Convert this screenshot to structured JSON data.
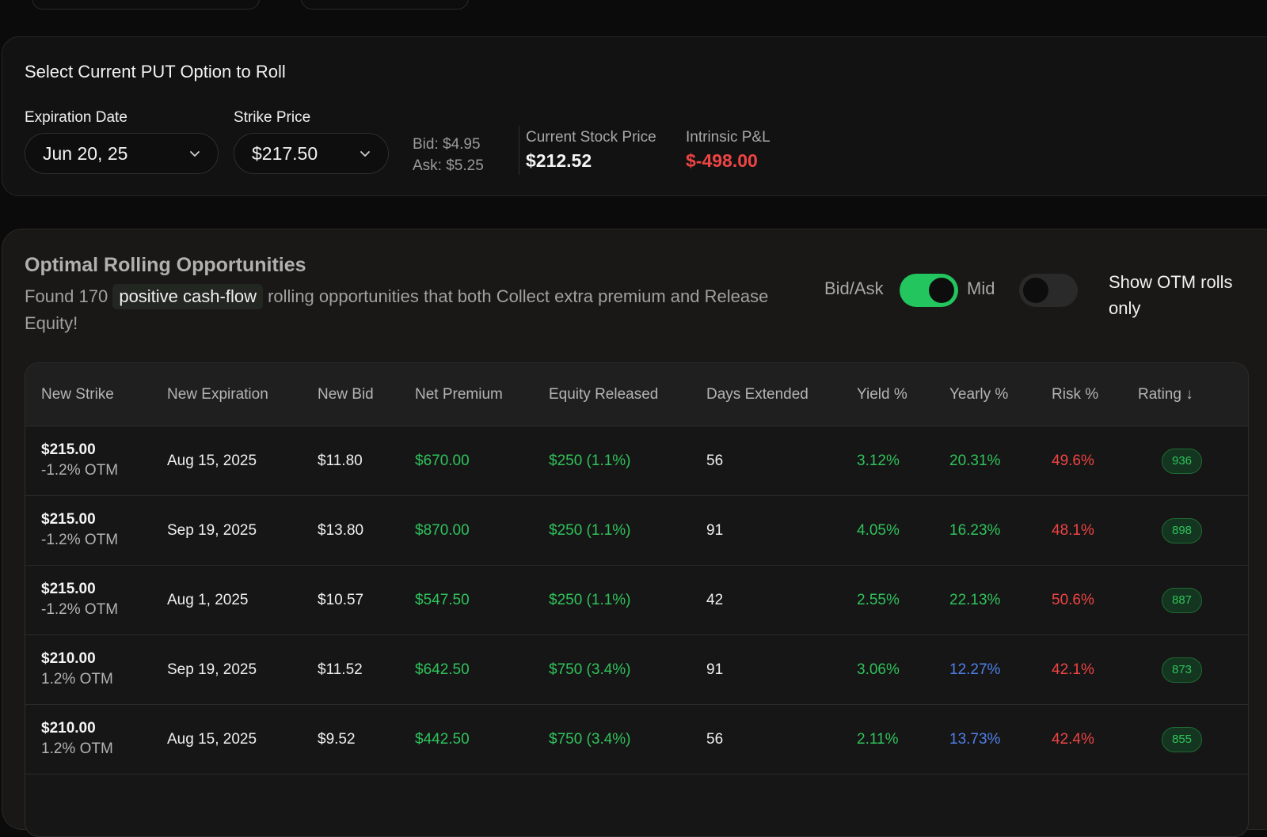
{
  "current_put": {
    "title": "Select Current PUT Option to Roll",
    "expiration_label": "Expiration Date",
    "expiration_value": "Jun 20, 25",
    "strike_label": "Strike Price",
    "strike_value": "$217.50",
    "bid": "Bid: $4.95",
    "ask": "Ask: $5.25",
    "stock_price_label": "Current Stock Price",
    "stock_price_value": "$212.52",
    "pnl_label": "Intrinsic P&L",
    "pnl_value": "$-498.00"
  },
  "opportunities": {
    "title": "Optimal Rolling Opportunities",
    "desc_prefix": "Found 170",
    "desc_highlight": "positive cash-flow",
    "desc_suffix": "rolling opportunities that both Collect extra premium and Release Equity!",
    "toggle_left_label": "Bid/Ask",
    "toggle_right_label": "Mid",
    "price_toggle_on": true,
    "otm_toggle_on": false,
    "otm_label": "Show OTM rolls only"
  },
  "table": {
    "headers": [
      "New Strike",
      "New Expiration",
      "New Bid",
      "Net Premium",
      "Equity Released",
      "Days Extended",
      "Yield %",
      "Yearly %",
      "Risk %",
      "Rating ↓"
    ],
    "rows": [
      {
        "strike": "$215.00",
        "otm": "-1.2% OTM",
        "expiration": "Aug 15, 2025",
        "bid": "$11.80",
        "net_premium": "$670.00",
        "equity": "$250 (1.1%)",
        "days": "56",
        "yield": "3.12%",
        "yearly": "20.31%",
        "yearly_color": "green",
        "risk": "49.6%",
        "rating": "936"
      },
      {
        "strike": "$215.00",
        "otm": "-1.2% OTM",
        "expiration": "Sep 19, 2025",
        "bid": "$13.80",
        "net_premium": "$870.00",
        "equity": "$250 (1.1%)",
        "days": "91",
        "yield": "4.05%",
        "yearly": "16.23%",
        "yearly_color": "green",
        "risk": "48.1%",
        "rating": "898"
      },
      {
        "strike": "$215.00",
        "otm": "-1.2% OTM",
        "expiration": "Aug 1, 2025",
        "bid": "$10.57",
        "net_premium": "$547.50",
        "equity": "$250 (1.1%)",
        "days": "42",
        "yield": "2.55%",
        "yearly": "22.13%",
        "yearly_color": "green",
        "risk": "50.6%",
        "rating": "887"
      },
      {
        "strike": "$210.00",
        "otm": "1.2% OTM",
        "expiration": "Sep 19, 2025",
        "bid": "$11.52",
        "net_premium": "$642.50",
        "equity": "$750 (3.4%)",
        "days": "91",
        "yield": "3.06%",
        "yearly": "12.27%",
        "yearly_color": "blue",
        "risk": "42.1%",
        "rating": "873"
      },
      {
        "strike": "$210.00",
        "otm": "1.2% OTM",
        "expiration": "Aug 15, 2025",
        "bid": "$9.52",
        "net_premium": "$442.50",
        "equity": "$750 (3.4%)",
        "days": "56",
        "yield": "2.11%",
        "yearly": "13.73%",
        "yearly_color": "blue",
        "risk": "42.4%",
        "rating": "855"
      }
    ]
  },
  "colors": {
    "positive": "#2fc25b",
    "negative": "#ef4444",
    "neutral_blue": "#4f7fe8",
    "toggle_on": "#22c55e",
    "toggle_off": "#2a2a2a"
  }
}
